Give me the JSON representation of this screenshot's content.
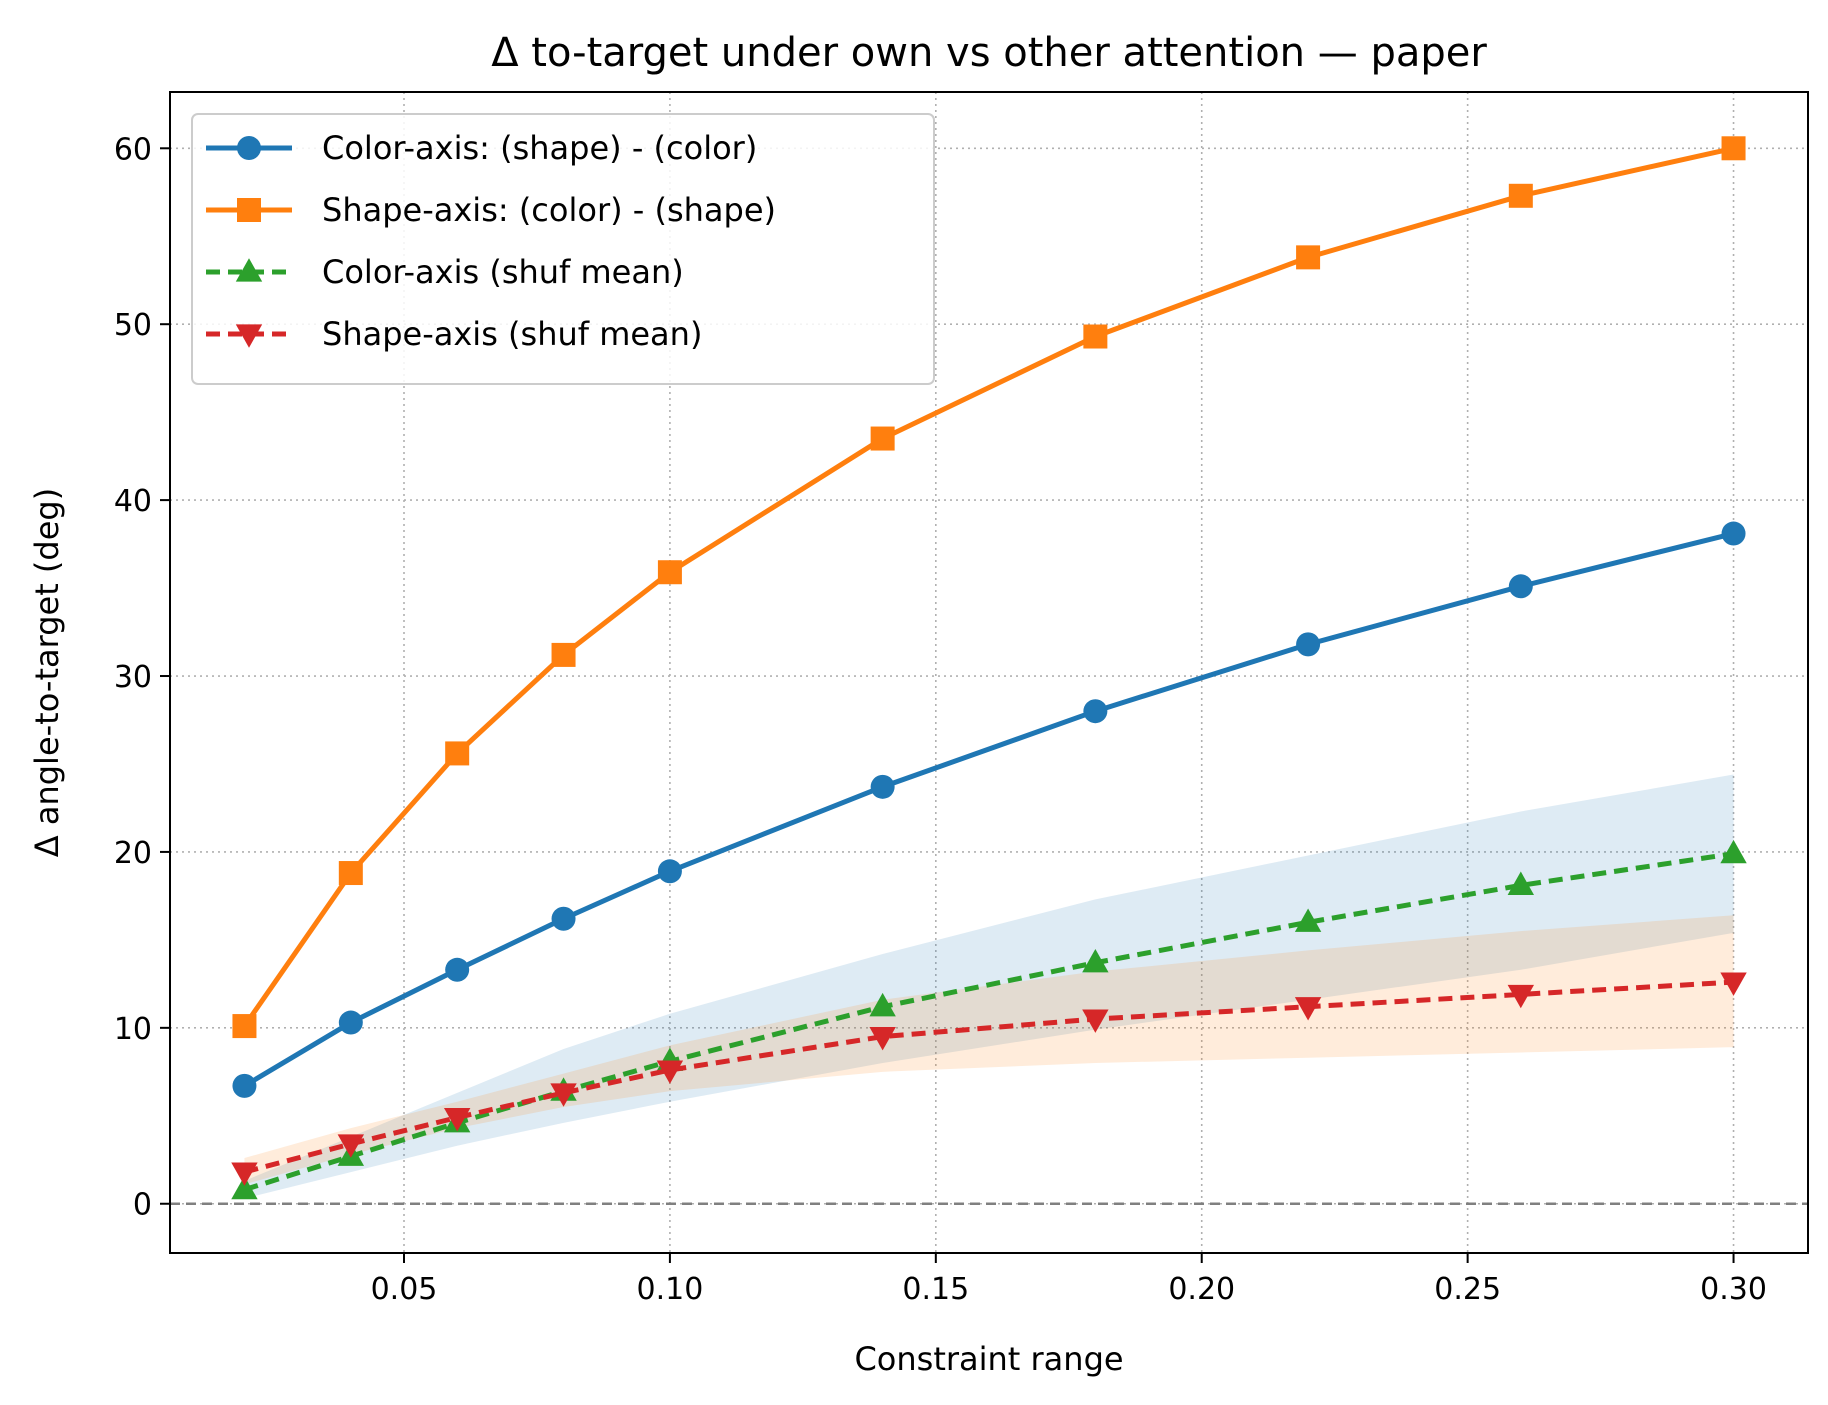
{
  "chart_data": {
    "type": "line",
    "title": "Δ to-target under own vs other attention — paper",
    "xlabel": "Constraint range",
    "ylabel": "Δ angle-to-target (deg)",
    "xlim": [
      0.006,
      0.314
    ],
    "ylim": [
      -2.8,
      63.2
    ],
    "xticks": [
      0.05,
      0.1,
      0.15,
      0.2,
      0.25,
      0.3
    ],
    "xtick_labels": [
      "0.05",
      "0.10",
      "0.15",
      "0.20",
      "0.25",
      "0.30"
    ],
    "yticks": [
      0,
      10,
      20,
      30,
      40,
      50,
      60
    ],
    "ytick_labels": [
      "0",
      "10",
      "20",
      "30",
      "40",
      "50",
      "60"
    ],
    "grid": true,
    "legend_position": "upper-left",
    "reference_line": {
      "y": 0,
      "color": "#808080",
      "style": "dashed"
    },
    "x": [
      0.02,
      0.04,
      0.06,
      0.08,
      0.1,
      0.14,
      0.18,
      0.22,
      0.26,
      0.3
    ],
    "bands": [
      {
        "color": "#1f77b4",
        "lower": [
          0.3,
          1.8,
          3.3,
          4.6,
          5.8,
          8.0,
          9.9,
          11.6,
          13.3,
          15.4
        ],
        "upper": [
          1.3,
          3.8,
          6.3,
          8.8,
          10.8,
          14.2,
          17.3,
          19.8,
          22.3,
          24.4
        ]
      },
      {
        "color": "#ff7f0e",
        "lower": [
          1.1,
          2.8,
          4.3,
          5.5,
          6.4,
          7.5,
          8.0,
          8.3,
          8.6,
          8.9
        ],
        "upper": [
          2.6,
          4.3,
          5.8,
          7.4,
          9.0,
          11.6,
          13.2,
          14.4,
          15.5,
          16.4
        ]
      }
    ],
    "series": [
      {
        "name": "Color-axis: (shape) - (color)",
        "color": "#1f77b4",
        "marker": "circle",
        "dash": "solid",
        "values": [
          6.7,
          10.3,
          13.3,
          16.2,
          18.9,
          23.7,
          28.0,
          31.8,
          35.1,
          38.1
        ]
      },
      {
        "name": "Shape-axis: (color) - (shape)",
        "color": "#ff7f0e",
        "marker": "square",
        "dash": "solid",
        "values": [
          10.1,
          18.8,
          25.6,
          31.2,
          35.9,
          43.5,
          49.3,
          53.8,
          57.3,
          60.0
        ]
      },
      {
        "name": "Color-axis (shuf mean)",
        "color": "#2ca02c",
        "marker": "triangle-up",
        "dash": "dashed",
        "values": [
          0.8,
          2.7,
          4.6,
          6.4,
          8.1,
          11.2,
          13.7,
          16.0,
          18.1,
          19.9
        ]
      },
      {
        "name": "Shape-axis (shuf mean)",
        "color": "#d62728",
        "marker": "triangle-down",
        "dash": "dashed",
        "values": [
          1.8,
          3.4,
          4.9,
          6.3,
          7.6,
          9.5,
          10.5,
          11.2,
          11.9,
          12.6
        ]
      }
    ]
  }
}
